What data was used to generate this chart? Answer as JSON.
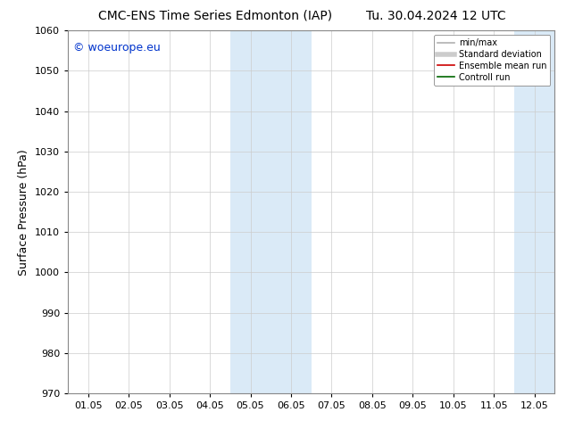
{
  "title_left": "CMC-ENS Time Series Edmonton (IAP)",
  "title_right": "Tu. 30.04.2024 12 UTC",
  "ylabel": "Surface Pressure (hPa)",
  "xlabel": "",
  "ylim": [
    970,
    1060
  ],
  "yticks": [
    970,
    980,
    990,
    1000,
    1010,
    1020,
    1030,
    1040,
    1050,
    1060
  ],
  "xtick_labels": [
    "01.05",
    "02.05",
    "03.05",
    "04.05",
    "05.05",
    "06.05",
    "07.05",
    "08.05",
    "09.05",
    "10.05",
    "11.05",
    "12.05"
  ],
  "n_xticks": 12,
  "shaded_regions": [
    {
      "xmin": 3.5,
      "xmax": 5.5
    },
    {
      "xmin": 10.5,
      "xmax": 11.5
    }
  ],
  "shaded_color": "#daeaf7",
  "watermark_text": "© woeurope.eu",
  "watermark_color": "#0033cc",
  "legend_entries": [
    {
      "label": "min/max",
      "color": "#b0b0b0",
      "lw": 1.2
    },
    {
      "label": "Standard deviation",
      "color": "#cccccc",
      "lw": 4
    },
    {
      "label": "Ensemble mean run",
      "color": "#cc0000",
      "lw": 1.2
    },
    {
      "label": "Controll run",
      "color": "#006600",
      "lw": 1.2
    }
  ],
  "bg_color": "#ffffff",
  "grid_color": "#cccccc",
  "title_fontsize": 10,
  "tick_fontsize": 8,
  "ylabel_fontsize": 9,
  "watermark_fontsize": 9,
  "legend_fontsize": 7
}
